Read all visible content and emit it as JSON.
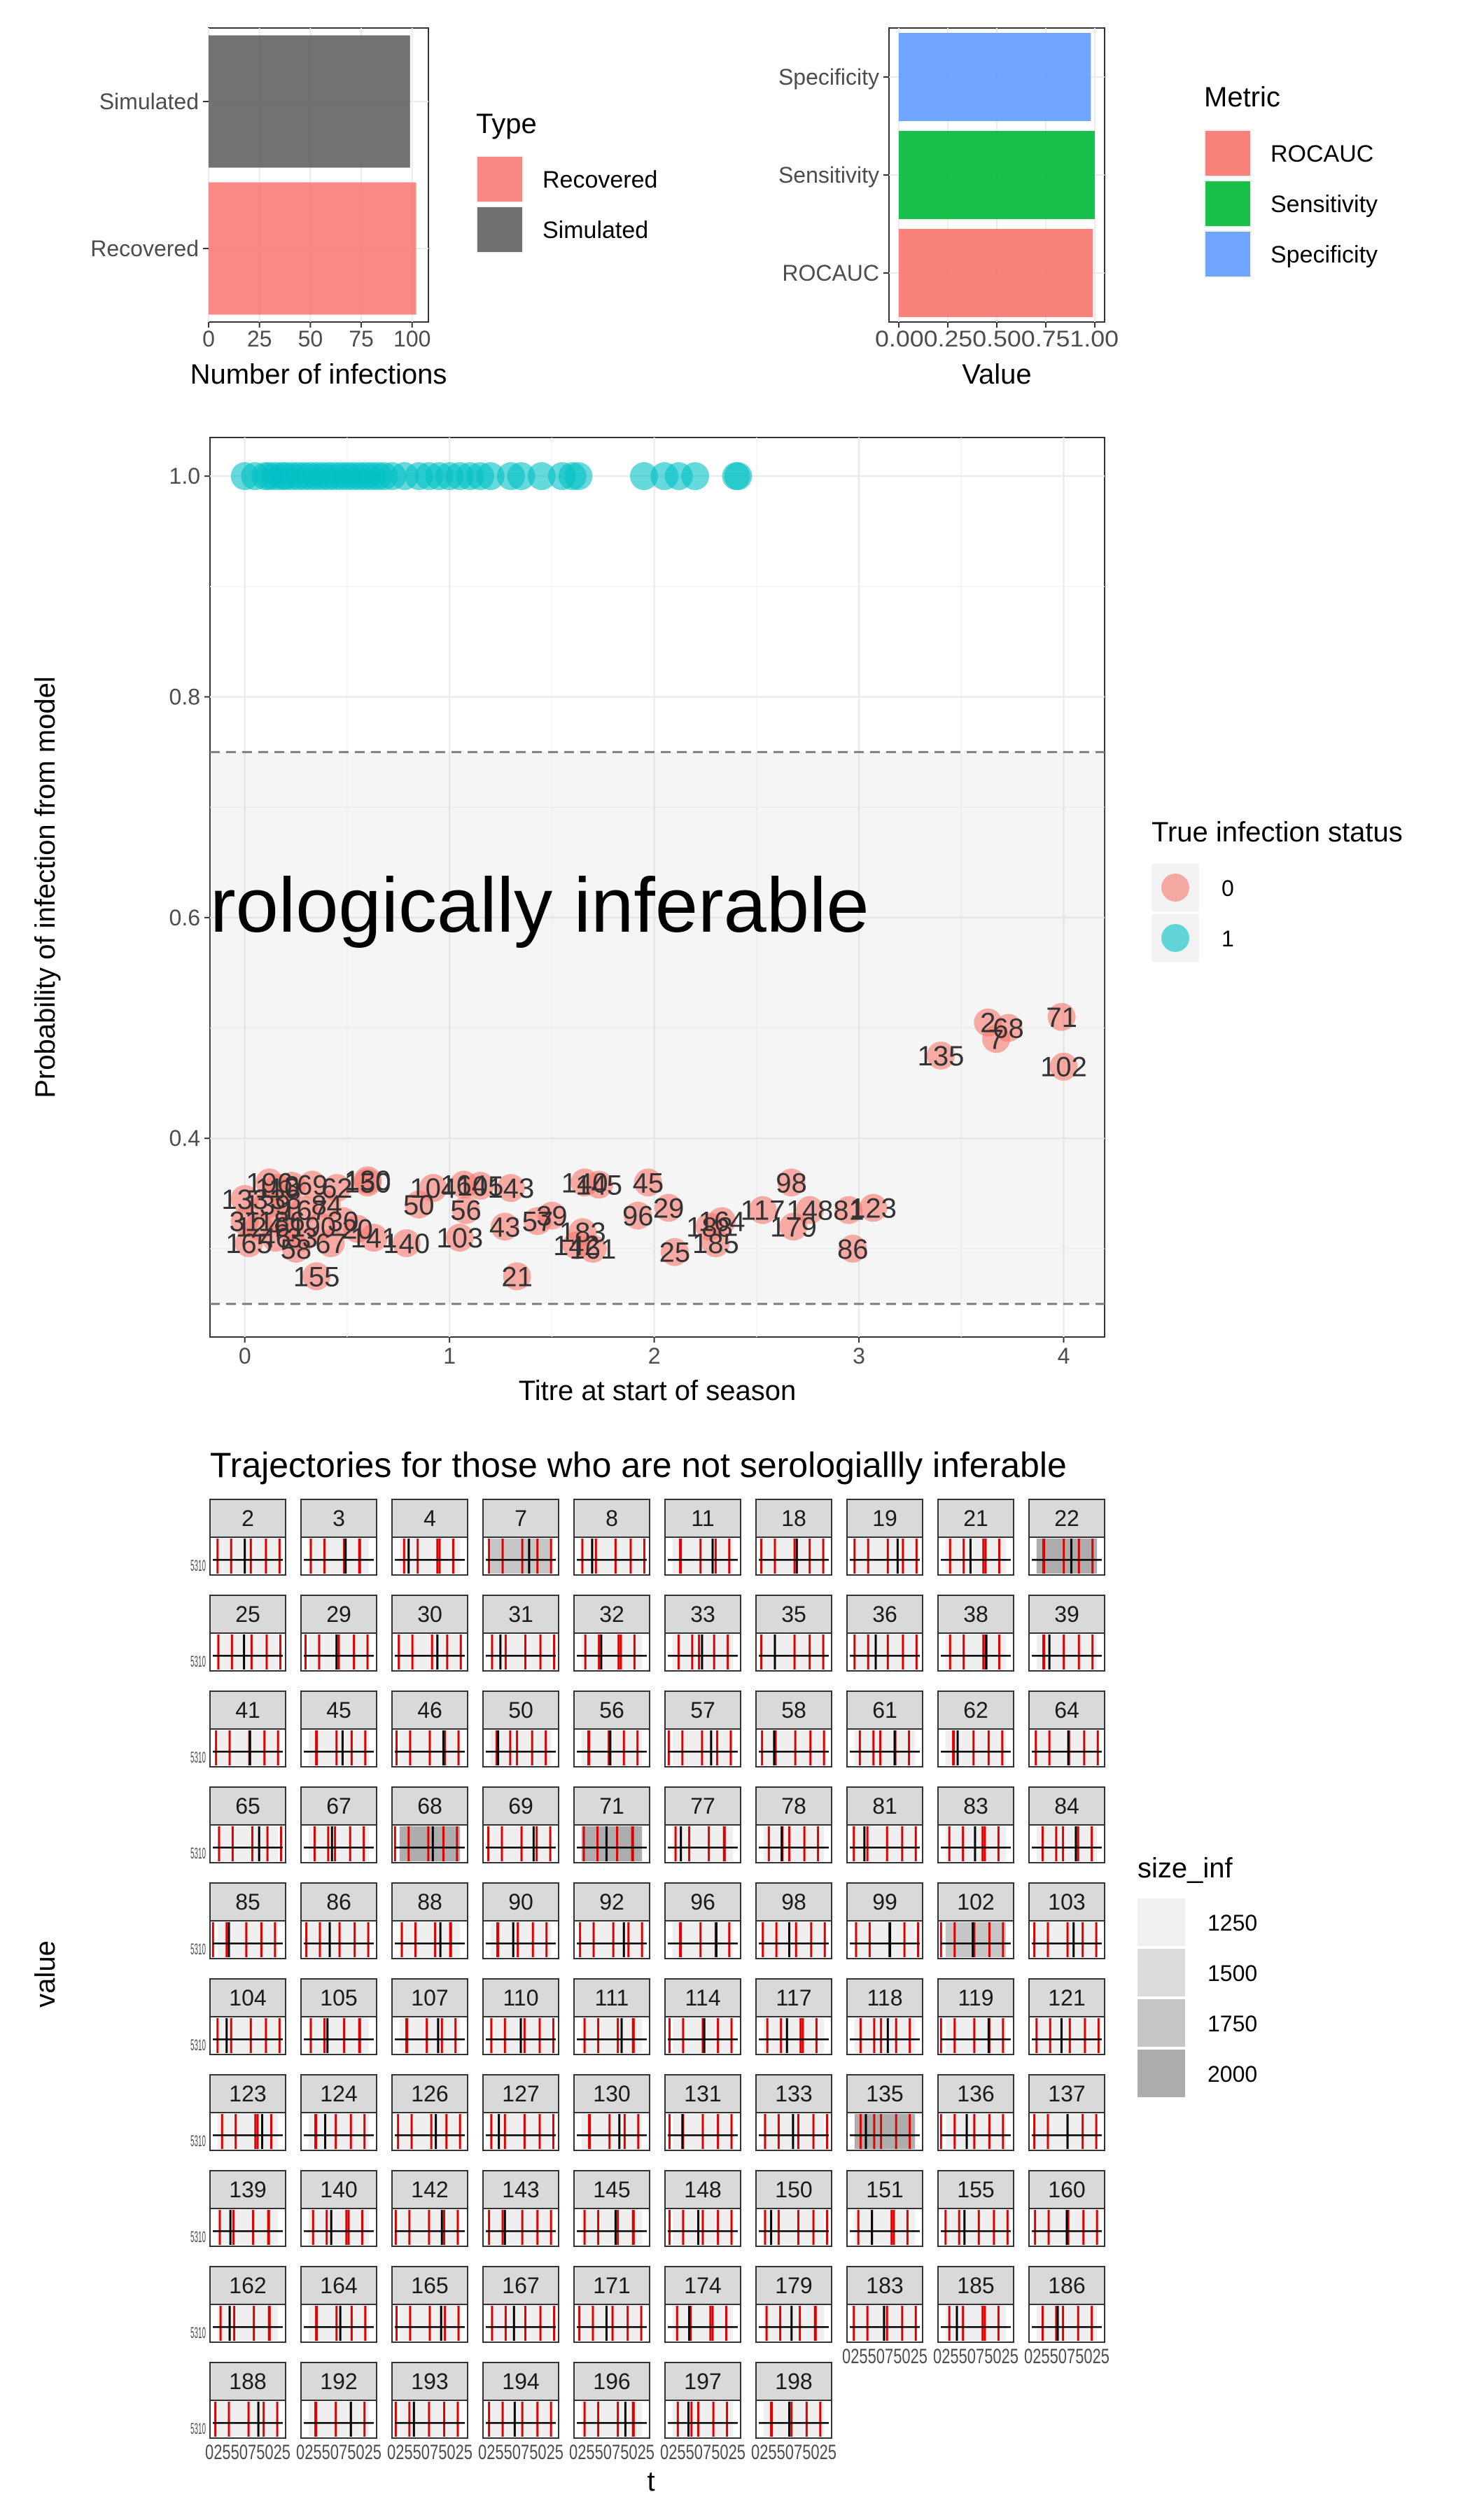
{
  "chart_data": [
    {
      "type": "bar",
      "orientation": "horizontal",
      "categories": [
        "Simulated",
        "Recovered"
      ],
      "values": [
        99,
        102
      ],
      "xlabel": "Number of infections",
      "xlim": [
        0,
        108
      ],
      "xticks": [
        "0",
        "25",
        "50",
        "75",
        "100"
      ],
      "grid": true,
      "legend": {
        "title": "Type",
        "placement": "right",
        "entries": [
          {
            "label": "Recovered",
            "color": "#F8766D"
          },
          {
            "label": "Simulated",
            "color": "#595959"
          }
        ]
      }
    },
    {
      "type": "bar",
      "orientation": "horizontal",
      "categories": [
        "Specificity",
        "Sensitivity",
        "ROCAUC"
      ],
      "values": [
        0.98,
        1.0,
        0.99
      ],
      "xlabel": "Value",
      "xlim": [
        0,
        1.05
      ],
      "xticks": [
        "0.00",
        "0.25",
        "0.50",
        "0.75",
        "1.00"
      ],
      "grid": true,
      "legend": {
        "title": "Metric",
        "placement": "right",
        "entries": [
          {
            "label": "ROCAUC",
            "color": "#F8766D"
          },
          {
            "label": "Sensitivity",
            "color": "#00BA38"
          },
          {
            "label": "Specificity",
            "color": "#619CFF"
          }
        ]
      }
    },
    {
      "type": "scatter",
      "xlabel": "Titre at start of season",
      "ylabel": "Probability of infection from model",
      "xlim": [
        -0.17,
        4.2
      ],
      "ylim": [
        0.22,
        1.035
      ],
      "xticks": [
        "0",
        "1",
        "2",
        "3",
        "4"
      ],
      "yticks": [
        "0.4",
        "0.6",
        "0.8",
        "1.0"
      ],
      "grid": true,
      "band": {
        "ymin": 0.25,
        "ymax": 0.75,
        "dashed_lines": [
          0.25,
          0.75
        ]
      },
      "annotation": "rologically inferable",
      "legend": {
        "title": "True infection status",
        "placement": "right",
        "entries": [
          {
            "label": "0",
            "color": "#F8766D"
          },
          {
            "label": "1",
            "color": "#00BFC4"
          }
        ]
      },
      "infected_points": {
        "y": 1.0,
        "x": [
          0.0,
          0.05,
          0.1,
          0.12,
          0.15,
          0.18,
          0.2,
          0.23,
          0.26,
          0.29,
          0.32,
          0.35,
          0.38,
          0.41,
          0.44,
          0.47,
          0.5,
          0.53,
          0.56,
          0.59,
          0.62,
          0.65,
          0.68,
          0.72,
          0.78,
          0.85,
          0.9,
          0.95,
          1.0,
          1.05,
          1.1,
          1.15,
          1.2,
          1.3,
          1.35,
          1.45,
          1.55,
          1.6,
          1.63,
          1.95,
          2.05,
          2.12,
          2.2,
          2.4,
          2.41
        ]
      },
      "labeled_points": [
        {
          "label": "2",
          "x": 3.63,
          "y": 0.505
        },
        {
          "label": "7",
          "x": 3.67,
          "y": 0.49
        },
        {
          "label": "68",
          "x": 3.73,
          "y": 0.5
        },
        {
          "label": "71",
          "x": 3.99,
          "y": 0.51
        },
        {
          "label": "102",
          "x": 4.0,
          "y": 0.465
        },
        {
          "label": "135",
          "x": 3.4,
          "y": 0.475
        },
        {
          "label": "98",
          "x": 2.67,
          "y": 0.36
        },
        {
          "label": "86",
          "x": 2.97,
          "y": 0.3
        },
        {
          "label": "123",
          "x": 3.07,
          "y": 0.337
        },
        {
          "label": "81",
          "x": 2.95,
          "y": 0.335
        },
        {
          "label": "179",
          "x": 2.68,
          "y": 0.32
        },
        {
          "label": "148",
          "x": 2.76,
          "y": 0.335
        },
        {
          "label": "117",
          "x": 2.53,
          "y": 0.335
        },
        {
          "label": "25",
          "x": 2.1,
          "y": 0.297
        },
        {
          "label": "185",
          "x": 2.3,
          "y": 0.305
        },
        {
          "label": "164",
          "x": 2.33,
          "y": 0.325
        },
        {
          "label": "188",
          "x": 2.27,
          "y": 0.32
        },
        {
          "label": "45",
          "x": 1.97,
          "y": 0.36
        },
        {
          "label": "29",
          "x": 2.07,
          "y": 0.337
        },
        {
          "label": "96",
          "x": 1.92,
          "y": 0.33
        },
        {
          "label": "140",
          "x": 1.66,
          "y": 0.36
        },
        {
          "label": "145",
          "x": 1.73,
          "y": 0.358
        },
        {
          "label": "183",
          "x": 1.65,
          "y": 0.315
        },
        {
          "label": "142",
          "x": 1.62,
          "y": 0.303
        },
        {
          "label": "161",
          "x": 1.7,
          "y": 0.3
        },
        {
          "label": "39",
          "x": 1.5,
          "y": 0.33
        },
        {
          "label": "57",
          "x": 1.43,
          "y": 0.325
        },
        {
          "label": "143",
          "x": 1.3,
          "y": 0.355
        },
        {
          "label": "43",
          "x": 1.27,
          "y": 0.32
        },
        {
          "label": "21",
          "x": 1.33,
          "y": 0.275
        },
        {
          "label": "103",
          "x": 1.05,
          "y": 0.31
        },
        {
          "label": "104",
          "x": 0.92,
          "y": 0.355
        },
        {
          "label": "164",
          "x": 1.07,
          "y": 0.358
        },
        {
          "label": "105",
          "x": 1.15,
          "y": 0.357
        },
        {
          "label": "56",
          "x": 1.08,
          "y": 0.335
        },
        {
          "label": "50",
          "x": 0.85,
          "y": 0.34
        },
        {
          "label": "150",
          "x": 0.6,
          "y": 0.36
        },
        {
          "label": "130",
          "x": 0.6,
          "y": 0.362
        },
        {
          "label": "140",
          "x": 0.79,
          "y": 0.305
        },
        {
          "label": "141",
          "x": 0.63,
          "y": 0.31
        },
        {
          "label": "155",
          "x": 0.35,
          "y": 0.275
        },
        {
          "label": "196",
          "x": 0.12,
          "y": 0.36
        },
        {
          "label": "133",
          "x": 0.0,
          "y": 0.345
        },
        {
          "label": "31",
          "x": 0.0,
          "y": 0.325
        },
        {
          "label": "165",
          "x": 0.02,
          "y": 0.305
        },
        {
          "label": "61",
          "x": 0.22,
          "y": 0.32
        },
        {
          "label": "58",
          "x": 0.25,
          "y": 0.3
        },
        {
          "label": "67",
          "x": 0.42,
          "y": 0.305
        },
        {
          "label": "62",
          "x": 0.45,
          "y": 0.355
        },
        {
          "label": "20",
          "x": 0.55,
          "y": 0.318
        },
        {
          "label": "38",
          "x": 0.2,
          "y": 0.345
        },
        {
          "label": "90",
          "x": 0.37,
          "y": 0.32
        },
        {
          "label": "167",
          "x": 0.29,
          "y": 0.335
        },
        {
          "label": "186",
          "x": 0.18,
          "y": 0.325
        },
        {
          "label": "139",
          "x": 0.11,
          "y": 0.34
        },
        {
          "label": "33",
          "x": 0.28,
          "y": 0.31
        },
        {
          "label": "84",
          "x": 0.4,
          "y": 0.34
        },
        {
          "label": "110",
          "x": 0.16,
          "y": 0.355
        },
        {
          "label": "30",
          "x": 0.48,
          "y": 0.325
        },
        {
          "label": "69",
          "x": 0.33,
          "y": 0.358
        },
        {
          "label": "3",
          "x": 0.23,
          "y": 0.357
        },
        {
          "label": "124",
          "x": 0.07,
          "y": 0.32
        },
        {
          "label": "46",
          "x": 0.15,
          "y": 0.31
        }
      ]
    },
    {
      "type": "facet-grid",
      "title": "Trajectories for those who are not serologiallly inferable",
      "xlabel": "t",
      "ylabel": "value",
      "facet_ids": [
        "2",
        "3",
        "4",
        "7",
        "8",
        "11",
        "18",
        "19",
        "21",
        "22",
        "25",
        "29",
        "30",
        "31",
        "32",
        "33",
        "35",
        "36",
        "38",
        "39",
        "41",
        "45",
        "46",
        "50",
        "56",
        "57",
        "58",
        "61",
        "62",
        "64",
        "65",
        "67",
        "68",
        "69",
        "71",
        "77",
        "78",
        "81",
        "83",
        "84",
        "85",
        "86",
        "88",
        "90",
        "92",
        "96",
        "98",
        "99",
        "102",
        "103",
        "104",
        "105",
        "107",
        "110",
        "111",
        "114",
        "117",
        "118",
        "119",
        "121",
        "123",
        "124",
        "126",
        "127",
        "130",
        "131",
        "133",
        "135",
        "136",
        "137",
        "139",
        "140",
        "142",
        "143",
        "145",
        "148",
        "150",
        "151",
        "155",
        "160",
        "162",
        "164",
        "165",
        "167",
        "171",
        "174",
        "179",
        "183",
        "185",
        "186",
        "188",
        "192",
        "193",
        "194",
        "196",
        "197",
        "198"
      ],
      "facet_y_tick_text": "5\n3\n1\n0",
      "facet_x_tick_text": "0255075025",
      "highlight_facets": {
        "22": 2000,
        "68": 2000,
        "71": 2000,
        "135": 2000,
        "102": 1750,
        "7": 1750
      },
      "legend": {
        "title": "size_inf",
        "placement": "right",
        "entries": [
          {
            "label": "1250",
            "color": "#F0F0F0"
          },
          {
            "label": "1500",
            "color": "#DCDCDC"
          },
          {
            "label": "1750",
            "color": "#C6C6C6"
          },
          {
            "label": "2000",
            "color": "#ADADAD"
          }
        ]
      }
    }
  ]
}
